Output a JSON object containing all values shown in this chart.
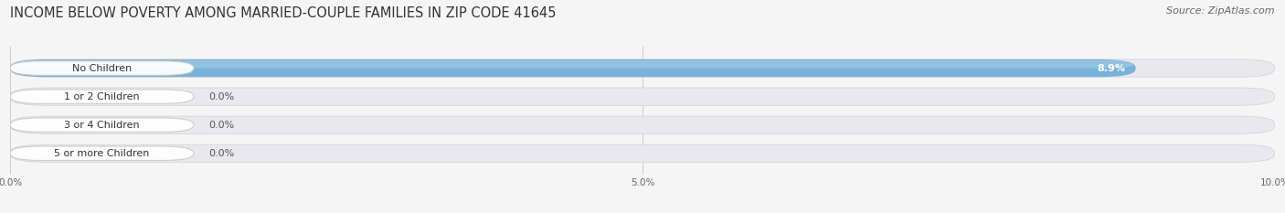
{
  "title": "INCOME BELOW POVERTY AMONG MARRIED-COUPLE FAMILIES IN ZIP CODE 41645",
  "source": "Source: ZipAtlas.com",
  "categories": [
    "No Children",
    "1 or 2 Children",
    "3 or 4 Children",
    "5 or more Children"
  ],
  "values": [
    8.9,
    0.0,
    0.0,
    0.0
  ],
  "bar_colors": [
    "#6baed6",
    "#c9a0c8",
    "#5ebdb0",
    "#9090cc"
  ],
  "xlim": [
    0,
    10.0
  ],
  "xticks": [
    0.0,
    5.0,
    10.0
  ],
  "xtick_labels": [
    "0.0%",
    "5.0%",
    "10.0%"
  ],
  "background_color": "#f5f5f5",
  "bar_bg_color": "#e8e8ee",
  "title_fontsize": 10.5,
  "source_fontsize": 8,
  "label_fontsize": 8,
  "value_fontsize": 8,
  "bar_height": 0.62,
  "figsize": [
    14.06,
    2.33
  ]
}
